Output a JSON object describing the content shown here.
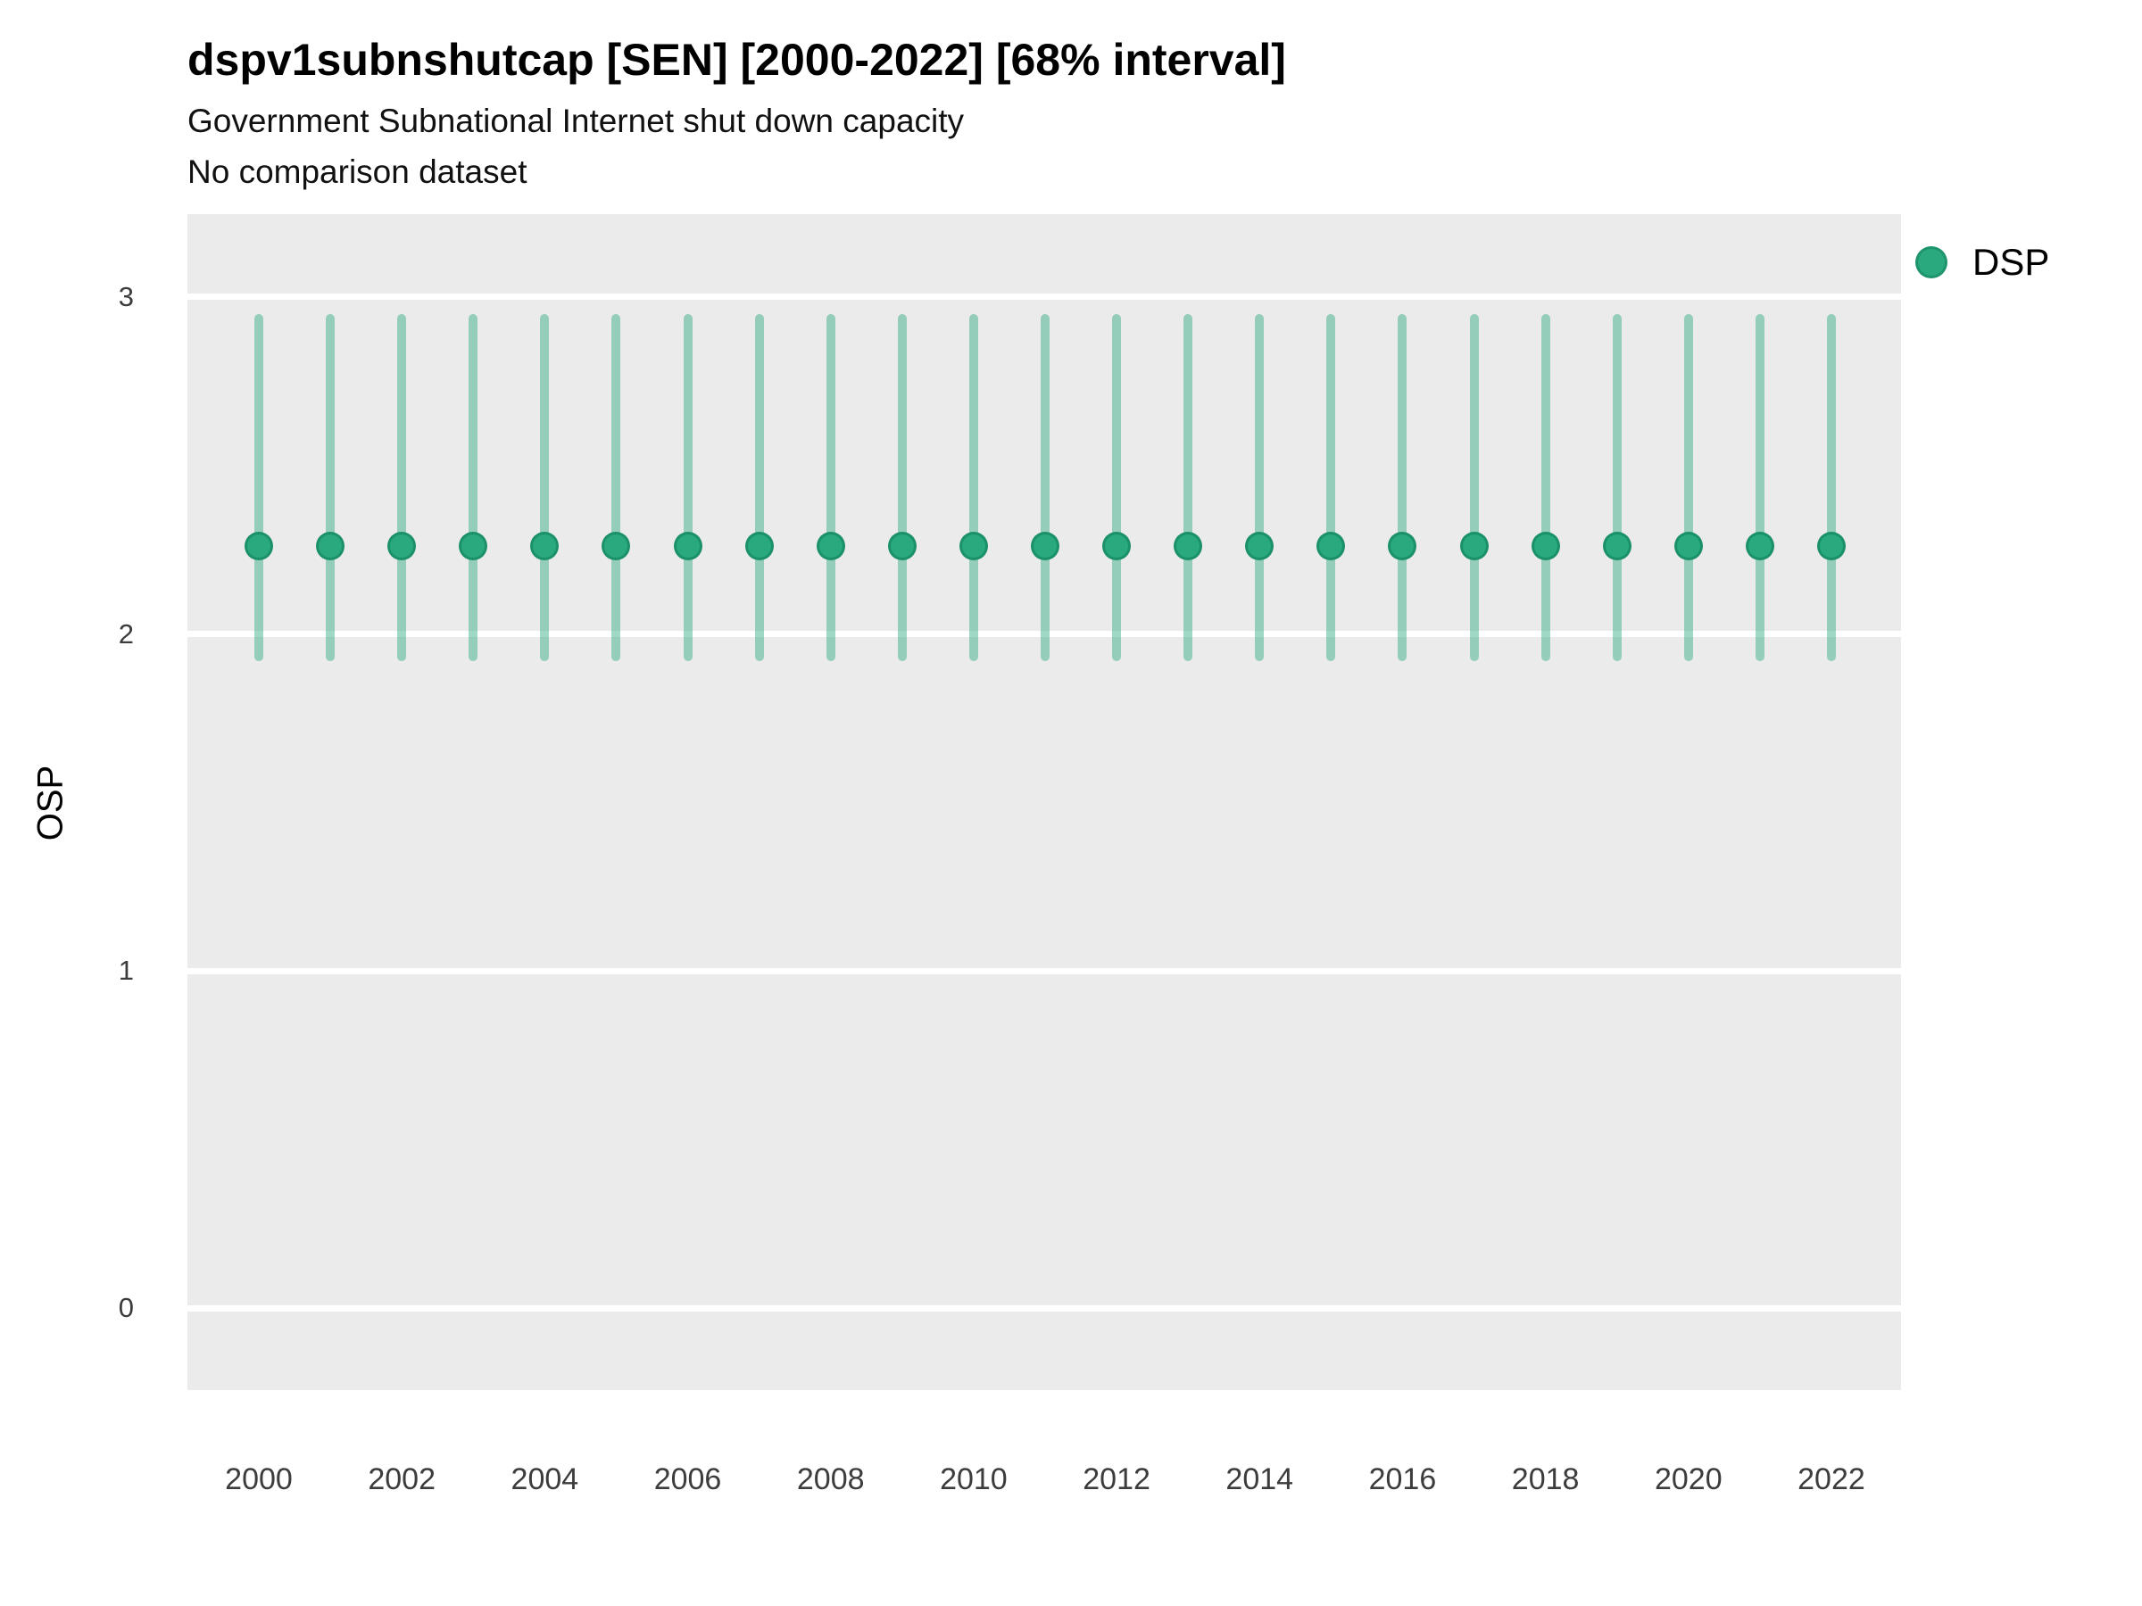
{
  "header": {
    "title": "dspv1subnshutcap [SEN] [2000-2022] [68% interval]",
    "subtitle": "Government Subnational Internet shut down capacity",
    "note": "No comparison dataset"
  },
  "legend": {
    "items": [
      {
        "label": "DSP",
        "color": "#2aa87e"
      }
    ]
  },
  "chart_data": {
    "type": "pointrange",
    "title": "dspv1subnshutcap [SEN] [2000-2022] [68% interval]",
    "subtitle": "Government Subnational Internet shut down capacity",
    "note": "No comparison dataset",
    "xlabel": "",
    "ylabel": "OSP",
    "interval": "68%",
    "legend_position": "right-top",
    "grid": "horizontal white gridlines on gray panel",
    "panel_bg": "#ebebeb",
    "gridline_color": "#ffffff",
    "x": [
      2000,
      2001,
      2002,
      2003,
      2004,
      2005,
      2006,
      2007,
      2008,
      2009,
      2010,
      2011,
      2012,
      2013,
      2014,
      2015,
      2016,
      2017,
      2018,
      2019,
      2020,
      2021,
      2022
    ],
    "x_ticks": [
      2000,
      2002,
      2004,
      2006,
      2008,
      2010,
      2012,
      2014,
      2016,
      2018,
      2020,
      2022
    ],
    "y_ticks": [
      0,
      1,
      2,
      3
    ],
    "ylim": [
      -0.24,
      3.25
    ],
    "series": [
      {
        "name": "DSP",
        "color": "#2aa87e",
        "interval_color": "rgba(42, 168, 126, 0.45)",
        "points": [
          2.26,
          2.26,
          2.26,
          2.26,
          2.26,
          2.26,
          2.26,
          2.26,
          2.26,
          2.26,
          2.26,
          2.26,
          2.26,
          2.26,
          2.26,
          2.26,
          2.26,
          2.26,
          2.26,
          2.26,
          2.26,
          2.26,
          2.26
        ],
        "low": [
          1.92,
          1.92,
          1.92,
          1.92,
          1.92,
          1.92,
          1.92,
          1.92,
          1.92,
          1.92,
          1.92,
          1.92,
          1.92,
          1.92,
          1.92,
          1.92,
          1.92,
          1.92,
          1.92,
          1.92,
          1.92,
          1.92,
          1.92
        ],
        "high": [
          2.95,
          2.95,
          2.95,
          2.95,
          2.95,
          2.95,
          2.95,
          2.95,
          2.95,
          2.95,
          2.95,
          2.95,
          2.95,
          2.95,
          2.95,
          2.95,
          2.95,
          2.95,
          2.95,
          2.95,
          2.95,
          2.95,
          2.95
        ]
      }
    ]
  }
}
